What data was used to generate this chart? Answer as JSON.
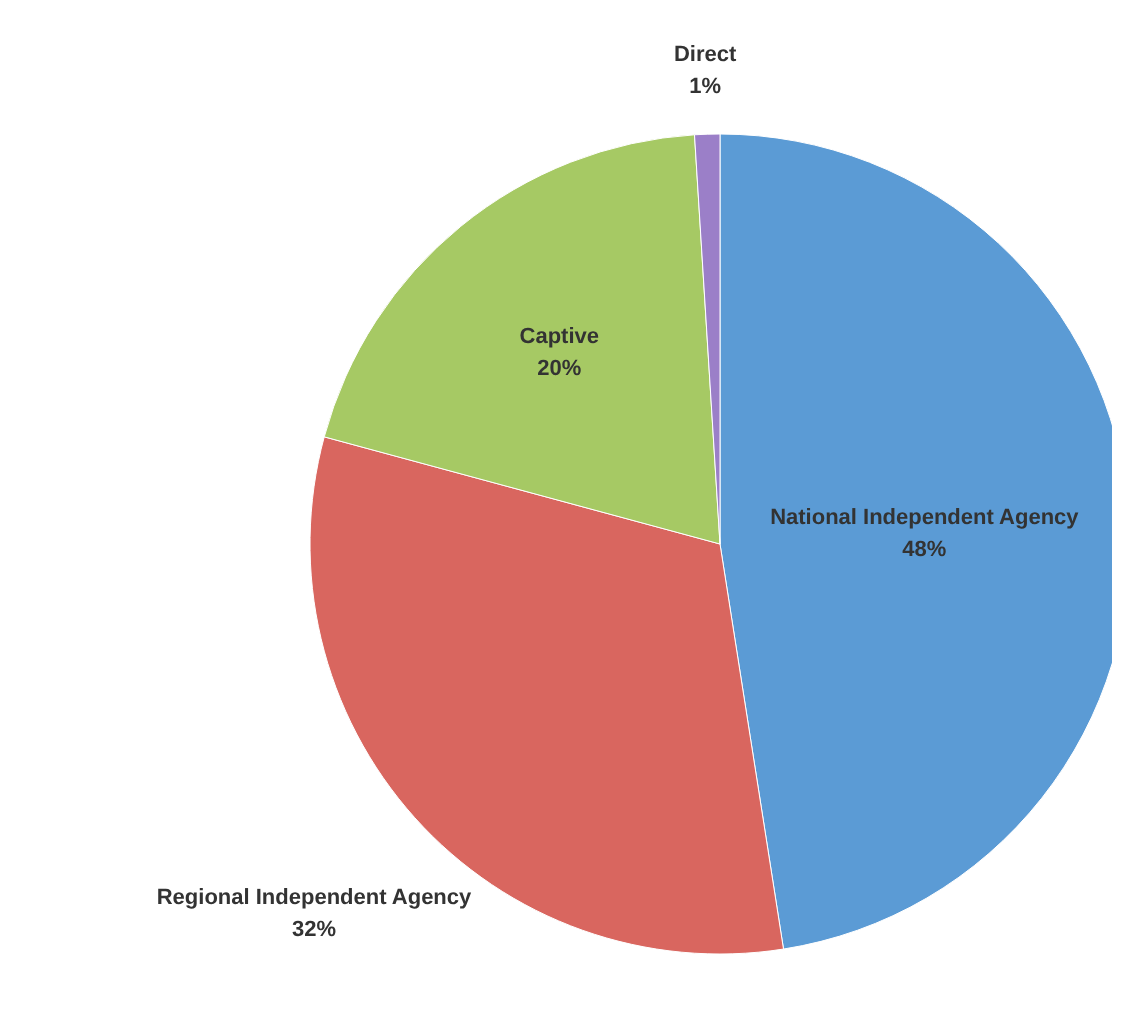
{
  "chart_data": {
    "type": "pie",
    "categories": [
      "National Independent Agency",
      "Regional Independent Agency",
      "Captive",
      "Direct"
    ],
    "values": [
      48,
      32,
      20,
      1
    ],
    "colors": [
      "#5b9bd5",
      "#d9665f",
      "#a6c964",
      "#9b7fc8"
    ],
    "value_labels": [
      "48%",
      "32%",
      "20%",
      "1%"
    ]
  }
}
